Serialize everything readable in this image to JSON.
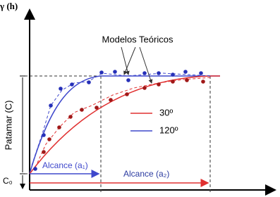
{
  "axis": {
    "y_label": "γ (h)"
  },
  "annotation": "Modelos Teóricos",
  "sill_label": "Patamar (C)",
  "nugget_label": "C₀",
  "range_labels": [
    "Alcance (a₁)",
    "Alcance (a₂)"
  ],
  "legend": [
    "30º",
    "120º"
  ]
}
